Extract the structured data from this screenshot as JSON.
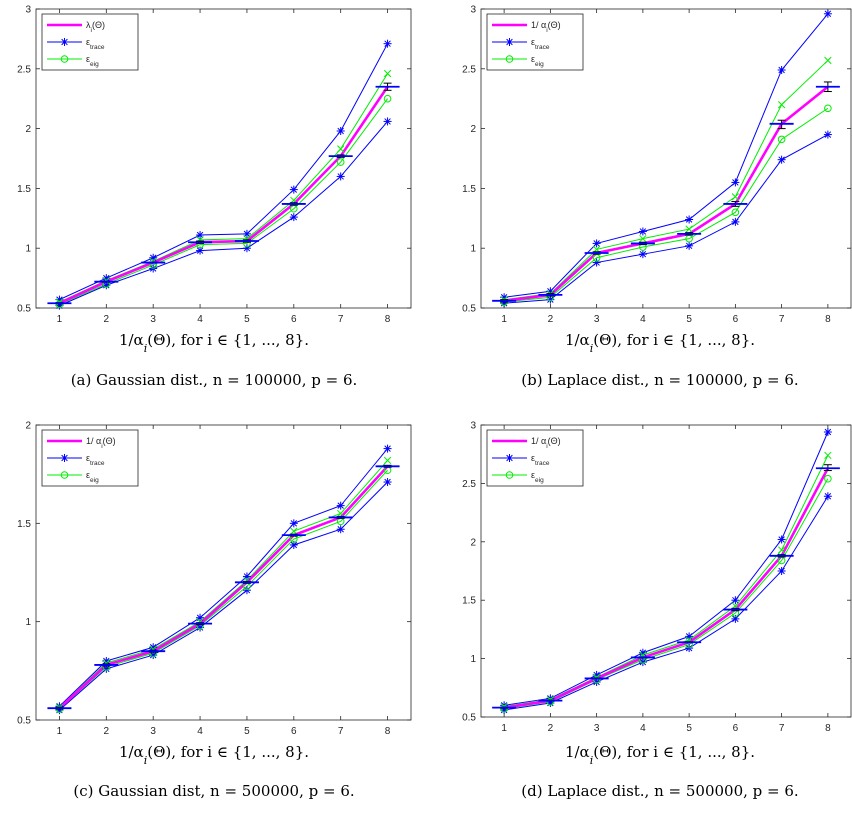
{
  "figure": {
    "colors": {
      "mean_line": "#ff00ff",
      "trace_bounds": "#0000ff",
      "eig_bounds": "#00ee00",
      "errorbar": "#000000",
      "axes": "#262626"
    }
  },
  "chart_data": [
    {
      "panel": "a",
      "type": "line",
      "x": [
        1,
        2,
        3,
        4,
        5,
        6,
        7,
        8
      ],
      "xlim": [
        0.5,
        8.5
      ],
      "ylim": [
        0.5,
        3
      ],
      "yticks": [
        "0.5",
        "1",
        "1.5",
        "2",
        "2.5",
        "3"
      ],
      "xticks": [
        "1",
        "2",
        "3",
        "4",
        "5",
        "6",
        "7",
        "8"
      ],
      "xlabel": "1/αᵢ(Θ), for i ∈ {1, ..., 8}.",
      "caption": "(a) Gaussian dist., n = 100000, p = 6.",
      "legend": {
        "position": "top-left",
        "entries": [
          "λᵢ(Θ)",
          "εtrace",
          "εeig"
        ]
      },
      "series": [
        {
          "role": "mean",
          "values": [
            0.54,
            0.72,
            0.88,
            1.05,
            1.06,
            1.37,
            1.77,
            2.35
          ]
        },
        {
          "role": "trace_upper",
          "values": [
            0.57,
            0.75,
            0.92,
            1.11,
            1.12,
            1.49,
            1.98,
            2.71
          ]
        },
        {
          "role": "trace_lower",
          "values": [
            0.52,
            0.69,
            0.83,
            0.98,
            1.0,
            1.26,
            1.6,
            2.06
          ]
        },
        {
          "role": "eig_upper",
          "values": [
            0.55,
            0.73,
            0.89,
            1.07,
            1.08,
            1.4,
            1.83,
            2.46
          ]
        },
        {
          "role": "eig_lower",
          "values": [
            0.53,
            0.7,
            0.86,
            1.03,
            1.04,
            1.33,
            1.72,
            2.25
          ]
        }
      ],
      "errorbars": {
        "x": [
          1,
          2,
          3,
          4,
          5,
          6,
          7,
          8
        ],
        "low": [
          0.535,
          0.715,
          0.875,
          1.04,
          1.05,
          1.36,
          1.76,
          2.32
        ],
        "high": [
          0.545,
          0.725,
          0.885,
          1.06,
          1.07,
          1.38,
          1.78,
          2.38
        ]
      }
    },
    {
      "panel": "b",
      "type": "line",
      "x": [
        1,
        2,
        3,
        4,
        5,
        6,
        7,
        8
      ],
      "xlim": [
        0.5,
        8.5
      ],
      "ylim": [
        0.5,
        3
      ],
      "yticks": [
        "0.5",
        "1",
        "1.5",
        "2",
        "2.5",
        "3"
      ],
      "xticks": [
        "1",
        "2",
        "3",
        "4",
        "5",
        "6",
        "7",
        "8"
      ],
      "xlabel": "1/αᵢ(Θ), for i ∈ {1, ..., 8}.",
      "caption": "(b) Laplace dist., n = 100000, p = 6.",
      "legend": {
        "position": "top-left",
        "entries": [
          "1/ αᵢ(Θ)",
          "εtrace",
          "εeig"
        ]
      },
      "series": [
        {
          "role": "mean",
          "values": [
            0.56,
            0.61,
            0.96,
            1.04,
            1.12,
            1.37,
            2.04,
            2.35
          ]
        },
        {
          "role": "trace_upper",
          "values": [
            0.59,
            0.64,
            1.04,
            1.14,
            1.24,
            1.55,
            2.49,
            2.96
          ]
        },
        {
          "role": "trace_lower",
          "values": [
            0.54,
            0.57,
            0.88,
            0.95,
            1.02,
            1.22,
            1.74,
            1.95
          ]
        },
        {
          "role": "eig_upper",
          "values": [
            0.57,
            0.62,
            0.99,
            1.08,
            1.16,
            1.43,
            2.2,
            2.57
          ]
        },
        {
          "role": "eig_lower",
          "values": [
            0.55,
            0.59,
            0.92,
            1.01,
            1.08,
            1.3,
            1.91,
            2.17
          ]
        }
      ],
      "errorbars": {
        "x": [
          1,
          2,
          3,
          4,
          5,
          6,
          7,
          8
        ],
        "low": [
          0.55,
          0.6,
          0.95,
          1.03,
          1.11,
          1.35,
          2.0,
          2.31
        ],
        "high": [
          0.57,
          0.62,
          0.97,
          1.05,
          1.13,
          1.39,
          2.07,
          2.39
        ]
      }
    },
    {
      "panel": "c",
      "type": "line",
      "x": [
        1,
        2,
        3,
        4,
        5,
        6,
        7,
        8
      ],
      "xlim": [
        0.5,
        8.5
      ],
      "ylim": [
        0.5,
        2
      ],
      "yticks": [
        "0.5",
        "1",
        "1.5",
        "2"
      ],
      "xticks": [
        "1",
        "2",
        "3",
        "4",
        "5",
        "6",
        "7",
        "8"
      ],
      "xlabel": "1/αᵢ(Θ), for i ∈ {1, ..., 8}.",
      "caption": "(c) Gaussian dist, n = 500000, p = 6.",
      "legend": {
        "position": "top-left",
        "entries": [
          "1/ αᵢ(Θ)",
          "εtrace",
          "εeig"
        ]
      },
      "series": [
        {
          "role": "mean",
          "values": [
            0.56,
            0.78,
            0.85,
            0.99,
            1.2,
            1.44,
            1.53,
            1.79
          ]
        },
        {
          "role": "trace_upper",
          "values": [
            0.57,
            0.8,
            0.87,
            1.02,
            1.23,
            1.5,
            1.59,
            1.88
          ]
        },
        {
          "role": "trace_lower",
          "values": [
            0.55,
            0.76,
            0.83,
            0.97,
            1.16,
            1.39,
            1.47,
            1.71
          ]
        },
        {
          "role": "eig_upper",
          "values": [
            0.565,
            0.79,
            0.86,
            1.0,
            1.21,
            1.46,
            1.55,
            1.82
          ]
        },
        {
          "role": "eig_lower",
          "values": [
            0.555,
            0.77,
            0.84,
            0.98,
            1.18,
            1.42,
            1.51,
            1.77
          ]
        }
      ],
      "errorbars": {
        "x": [
          1,
          2,
          3,
          4,
          5,
          6,
          7,
          8
        ],
        "low": [
          0.555,
          0.775,
          0.845,
          0.985,
          1.195,
          1.435,
          1.525,
          1.785
        ],
        "high": [
          0.565,
          0.785,
          0.855,
          0.995,
          1.205,
          1.445,
          1.535,
          1.795
        ]
      }
    },
    {
      "panel": "d",
      "type": "line",
      "x": [
        1,
        2,
        3,
        4,
        5,
        6,
        7,
        8
      ],
      "xlim": [
        0.5,
        8.5
      ],
      "ylim": [
        0.5,
        3
      ],
      "yticks": [
        "0.5",
        "1",
        "1.5",
        "2",
        "2.5",
        "3"
      ],
      "xticks": [
        "1",
        "2",
        "3",
        "4",
        "5",
        "6",
        "7",
        "8"
      ],
      "xlabel": "1/αᵢ(Θ), for i ∈ {1, ..., 8}.",
      "caption": "(d) Laplace dist., n = 500000, p = 6.",
      "legend": {
        "position": "top-left",
        "entries": [
          "1/ αᵢ(Θ)",
          "εtrace",
          "εeig"
        ]
      },
      "series": [
        {
          "role": "mean",
          "values": [
            0.58,
            0.64,
            0.83,
            1.01,
            1.14,
            1.42,
            1.88,
            2.63
          ]
        },
        {
          "role": "trace_upper",
          "values": [
            0.6,
            0.66,
            0.86,
            1.05,
            1.19,
            1.5,
            2.02,
            2.94
          ]
        },
        {
          "role": "trace_lower",
          "values": [
            0.56,
            0.62,
            0.8,
            0.97,
            1.09,
            1.34,
            1.75,
            2.39
          ]
        },
        {
          "role": "eig_upper",
          "values": [
            0.59,
            0.65,
            0.84,
            1.03,
            1.16,
            1.45,
            1.93,
            2.74
          ]
        },
        {
          "role": "eig_lower",
          "values": [
            0.57,
            0.63,
            0.82,
            0.99,
            1.12,
            1.39,
            1.84,
            2.54
          ]
        }
      ],
      "errorbars": {
        "x": [
          1,
          2,
          3,
          4,
          5,
          6,
          7,
          8
        ],
        "low": [
          0.575,
          0.635,
          0.825,
          1.005,
          1.135,
          1.41,
          1.87,
          2.61
        ],
        "high": [
          0.585,
          0.645,
          0.835,
          1.015,
          1.145,
          1.43,
          1.89,
          2.66
        ]
      }
    }
  ]
}
